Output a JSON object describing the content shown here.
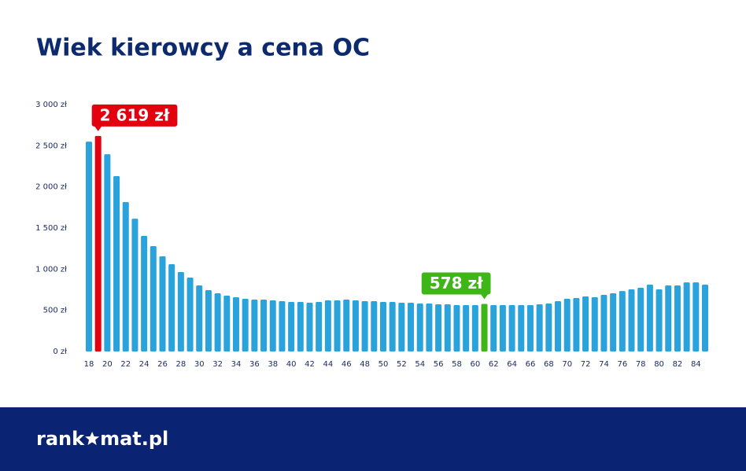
{
  "chart_data": {
    "type": "bar",
    "title": "Wiek kierowcy a cena OC",
    "categories": [
      "18",
      null,
      "20",
      null,
      "22",
      null,
      "24",
      null,
      "26",
      null,
      "28",
      null,
      "30",
      null,
      "32",
      null,
      "34",
      null,
      "36",
      null,
      "38",
      null,
      "40",
      null,
      "42",
      null,
      "44",
      null,
      "46",
      null,
      "48",
      null,
      "50",
      null,
      "52",
      null,
      "54",
      null,
      "56",
      null,
      "58",
      null,
      "60",
      null,
      "62",
      null,
      "64",
      null,
      "66",
      null,
      "68",
      null,
      "70",
      null,
      "72",
      null,
      "74",
      null,
      "76",
      null,
      "78",
      null,
      "80",
      null,
      "82",
      null,
      "84",
      null
    ],
    "values": [
      2550,
      2619,
      2397,
      2130,
      1815,
      1614,
      1404,
      1280,
      1156,
      1060,
      965,
      898,
      802,
      745,
      707,
      678,
      659,
      640,
      630,
      630,
      621,
      611,
      602,
      602,
      592,
      602,
      621,
      621,
      630,
      621,
      611,
      611,
      602,
      602,
      592,
      592,
      583,
      583,
      573,
      573,
      564,
      564,
      564,
      578,
      564,
      564,
      564,
      564,
      564,
      573,
      583,
      611,
      640,
      650,
      669,
      659,
      688,
      707,
      735,
      755,
      774,
      812,
      755,
      802,
      802,
      840,
      840,
      812
    ],
    "value_labels": [
      null,
      "2 619 zł",
      null,
      null,
      null,
      null,
      null,
      null,
      null,
      null,
      null,
      null,
      null,
      null,
      null,
      null,
      null,
      null,
      null,
      null,
      null,
      null,
      null,
      null,
      null,
      null,
      null,
      null,
      null,
      null,
      null,
      null,
      null,
      null,
      null,
      null,
      null,
      null,
      null,
      null,
      null,
      null,
      null,
      "578 zł",
      null,
      null,
      null,
      null,
      null,
      null,
      null,
      null,
      null,
      null,
      null,
      null,
      null,
      null,
      null,
      null,
      null,
      null,
      null,
      null,
      null,
      null,
      null,
      null
    ],
    "color": "#2aa3dc",
    "highlight_colors": {
      "1": "#e3000f",
      "43": "#3fb618"
    },
    "ylim": [
      0,
      3000
    ],
    "yticks": [
      {
        "value": 0,
        "label": "0 zł"
      },
      {
        "value": 500,
        "label": "500 zł"
      },
      {
        "value": 1000,
        "label": "1 000 zł"
      },
      {
        "value": 1500,
        "label": "1 500 zł"
      },
      {
        "value": 2000,
        "label": "2 000 zł"
      },
      {
        "value": 2500,
        "label": "2 500 zł"
      },
      {
        "value": 3000,
        "label": "3 000 zł"
      }
    ],
    "grid": false
  },
  "footer": {
    "logo": [
      "rank",
      "mat.pl"
    ]
  }
}
